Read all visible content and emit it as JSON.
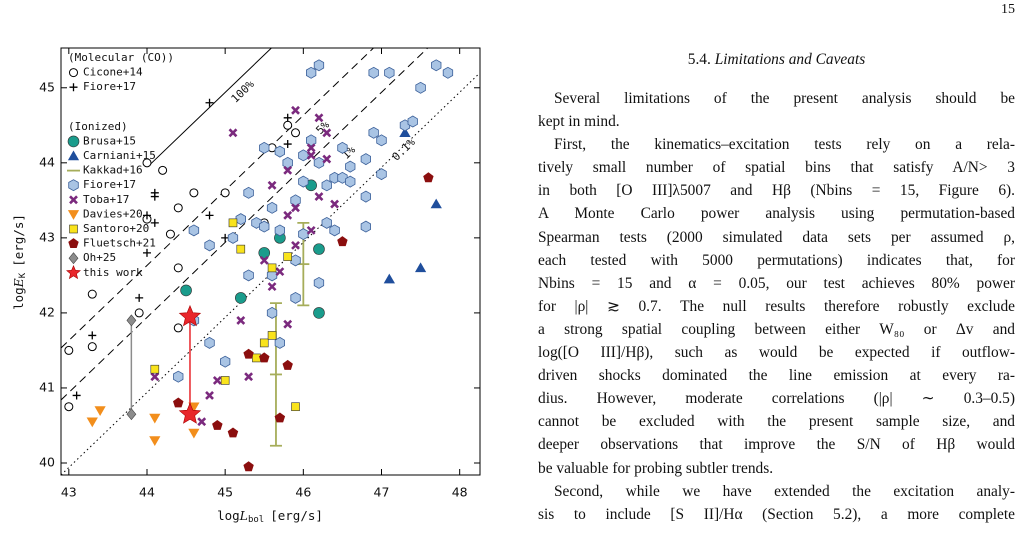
{
  "page_number": "15",
  "chart_data": {
    "type": "scatter",
    "x_label": {
      "prefix": "log",
      "symbol": "L",
      "subscript": "bol",
      "unit": "[erg/s]"
    },
    "y_label": {
      "prefix": "log",
      "symbol": "E",
      "subscript": "K",
      "unit": "[erg/s]"
    },
    "xlim": [
      42.9,
      48.26
    ],
    "ylim": [
      39.84,
      45.53
    ],
    "xticks": [
      43,
      44,
      45,
      46,
      47,
      48
    ],
    "yticks": [
      40,
      41,
      42,
      43,
      44,
      45
    ],
    "annotations": [
      "100%",
      "5%",
      "1%",
      "0.1%"
    ],
    "groups": [
      {
        "title": "(Molecular (CO))",
        "series": [
          {
            "name": "Cicone+14",
            "marker": "open-circle",
            "color": "#000000",
            "x": [
              43.0,
              43.0,
              43.3,
              43.3,
              43.9,
              44.4,
              44.4,
              44.0,
              44.3,
              44.4,
              44.6,
              44.2,
              44.0,
              45.0,
              45.8,
              45.9,
              45.5,
              45.6
            ],
            "y": [
              41.5,
              40.75,
              42.25,
              41.55,
              42.0,
              42.6,
              41.8,
              43.25,
              43.05,
              43.4,
              43.6,
              43.9,
              44.0,
              43.6,
              44.5,
              44.4,
              43.2,
              44.2
            ]
          },
          {
            "name": "Fiore+17",
            "marker": "plus",
            "color": "#000000",
            "x": [
              43.1,
              43.3,
              43.9,
              44.0,
              44.0,
              44.1,
              44.1,
              44.1,
              44.8,
              44.8,
              45.8,
              45.8,
              45.0
            ],
            "y": [
              40.9,
              41.7,
              42.2,
              42.8,
              43.3,
              43.2,
              43.55,
              43.6,
              43.3,
              44.8,
              44.6,
              44.25,
              43.0
            ]
          }
        ]
      },
      {
        "title": "(Ionized)",
        "series": [
          {
            "name": "Brusa+15",
            "marker": "circle",
            "color": "#1a9c8c",
            "x": [
              44.5,
              45.2,
              45.5,
              45.7,
              46.2,
              46.1,
              46.2
            ],
            "y": [
              42.3,
              42.2,
              42.8,
              43.0,
              42.85,
              43.7,
              42.0
            ]
          },
          {
            "name": "Carniani+15",
            "marker": "triangle-up",
            "color": "#1f4e9c",
            "x": [
              47.3,
              47.7,
              47.5,
              47.1
            ],
            "y": [
              44.4,
              43.45,
              42.6,
              42.45
            ]
          },
          {
            "name": "Kakkad+16",
            "marker": "errorbar",
            "color": "#a6ad5a",
            "x": [
              45.65,
              46.0
            ],
            "y": [
              41.18,
              42.65
            ],
            "err": [
              0.95,
              0.55
            ]
          },
          {
            "name": "Fiore+17",
            "marker": "hexagon",
            "color": "#a9c4e4",
            "x": [
              46.9,
              47.1,
              46.1,
              46.2,
              47.5,
              47.7,
              47.85,
              47.3,
              47.4,
              46.9,
              47.0,
              46.8,
              46.5,
              46.6,
              46.2,
              46.0,
              45.8,
              45.7,
              45.5,
              46.0,
              46.3,
              46.4,
              46.5,
              46.6,
              47.0,
              46.8,
              45.9,
              45.6,
              45.3,
              45.2,
              45.4,
              45.5,
              45.7,
              46.0,
              46.3,
              46.4,
              46.8,
              44.6,
              45.1,
              44.8,
              45.9,
              45.6,
              45.9,
              45.3,
              46.2,
              45.6,
              45.0,
              44.4,
              44.8,
              44.6,
              45.7,
              46.1
            ],
            "y": [
              45.2,
              45.2,
              45.2,
              45.3,
              45.0,
              45.3,
              45.2,
              44.5,
              44.55,
              44.4,
              44.3,
              44.05,
              44.2,
              43.95,
              44.0,
              44.1,
              44.0,
              44.15,
              44.2,
              43.75,
              43.7,
              43.8,
              43.8,
              43.75,
              43.85,
              43.55,
              43.5,
              43.4,
              43.6,
              43.25,
              43.2,
              43.15,
              43.1,
              43.05,
              43.2,
              43.1,
              43.15,
              43.1,
              43.0,
              42.9,
              42.7,
              42.5,
              42.2,
              42.5,
              42.4,
              42.0,
              41.35,
              41.15,
              41.6,
              41.9,
              41.6,
              44.3
            ]
          },
          {
            "name": "Toba+17",
            "marker": "x",
            "color": "#7b2a7e",
            "x": [
              45.9,
              46.2,
              46.3,
              46.1,
              46.1,
              46.3,
              45.8,
              45.1,
              46.2,
              46.4,
              45.9,
              45.8,
              46.1,
              45.9,
              45.6,
              45.5,
              45.7,
              45.6,
              45.2,
              45.3,
              44.9,
              44.8,
              44.7,
              44.1,
              45.8
            ],
            "y": [
              44.7,
              44.6,
              44.4,
              44.1,
              44.2,
              44.05,
              43.9,
              44.4,
              43.55,
              43.45,
              43.4,
              43.3,
              43.1,
              42.9,
              43.7,
              42.7,
              42.55,
              42.35,
              41.9,
              41.15,
              41.1,
              40.9,
              40.55,
              41.15,
              41.85
            ]
          },
          {
            "name": "Davies+20",
            "marker": "triangle-down",
            "color": "#f28e1c",
            "x": [
              43.3,
              43.4,
              44.1,
              44.1,
              44.6,
              44.6
            ],
            "y": [
              40.55,
              40.7,
              40.6,
              40.3,
              40.4,
              40.75
            ]
          },
          {
            "name": "Santoro+20",
            "marker": "square",
            "color": "#f9e31c",
            "x": [
              44.1,
              45.0,
              45.4,
              45.5,
              45.6,
              45.9,
              45.1,
              45.2,
              45.8,
              45.6
            ],
            "y": [
              41.25,
              41.1,
              41.4,
              41.6,
              41.7,
              40.75,
              43.2,
              42.85,
              42.75,
              42.6
            ]
          },
          {
            "name": "Fluetsch+21",
            "marker": "pentagon",
            "color": "#8b0e0e",
            "x": [
              44.4,
              44.9,
              45.1,
              45.3,
              45.3,
              45.5,
              45.8,
              45.7,
              46.5,
              47.6
            ],
            "y": [
              40.8,
              40.5,
              40.4,
              39.95,
              41.45,
              41.4,
              41.3,
              40.6,
              42.95,
              43.8
            ]
          },
          {
            "name": "Oh+25",
            "marker": "diamond",
            "color": "#8c8c8c",
            "x": [
              43.8,
              43.8
            ],
            "y": [
              41.9,
              40.65
            ]
          },
          {
            "name": "this work",
            "marker": "star",
            "color": "#e8262b",
            "x": [
              44.55,
              44.55
            ],
            "y": [
              41.95,
              40.65
            ]
          }
        ]
      }
    ]
  },
  "section": {
    "number": "5.4.",
    "title": "Limitations and Caveats",
    "paragraphs": [
      [
        "Several limitations of the present analysis should be",
        "kept in mind."
      ],
      [
        "First, the kinematics–excitation tests rely on a rela-",
        "tively small number of spatial bins that satisfy A/N> 3",
        "in both [O III]λ5007 and Hβ (Nbins = 15, Figure 6).",
        "A Monte Carlo power analysis using permutation-based",
        "Spearman tests (2000 simulated data sets per assumed ρ,",
        "each tested with 5000 permutations) indicates that, for",
        "Nbins = 15 and α = 0.05, our test achieves 80% power",
        "for |ρ| ≳ 0.7. The null results therefore robustly exclude",
        "a strong spatial coupling between either W₈₀ or Δv and",
        "log([O III]/Hβ), such as would be expected if outflow-",
        "driven shocks dominated the line emission at every ra-",
        "dius. However, moderate correlations (|ρ| ∼ 0.3–0.5)",
        "cannot be excluded with the present sample size, and",
        "deeper observations that improve the S/N of Hβ would",
        "be valuable for probing subtler trends."
      ],
      [
        "Second, while we have extended the excitation analy-",
        "sis to include [S II]/Hα (Section 5.2), a more complete"
      ]
    ]
  }
}
